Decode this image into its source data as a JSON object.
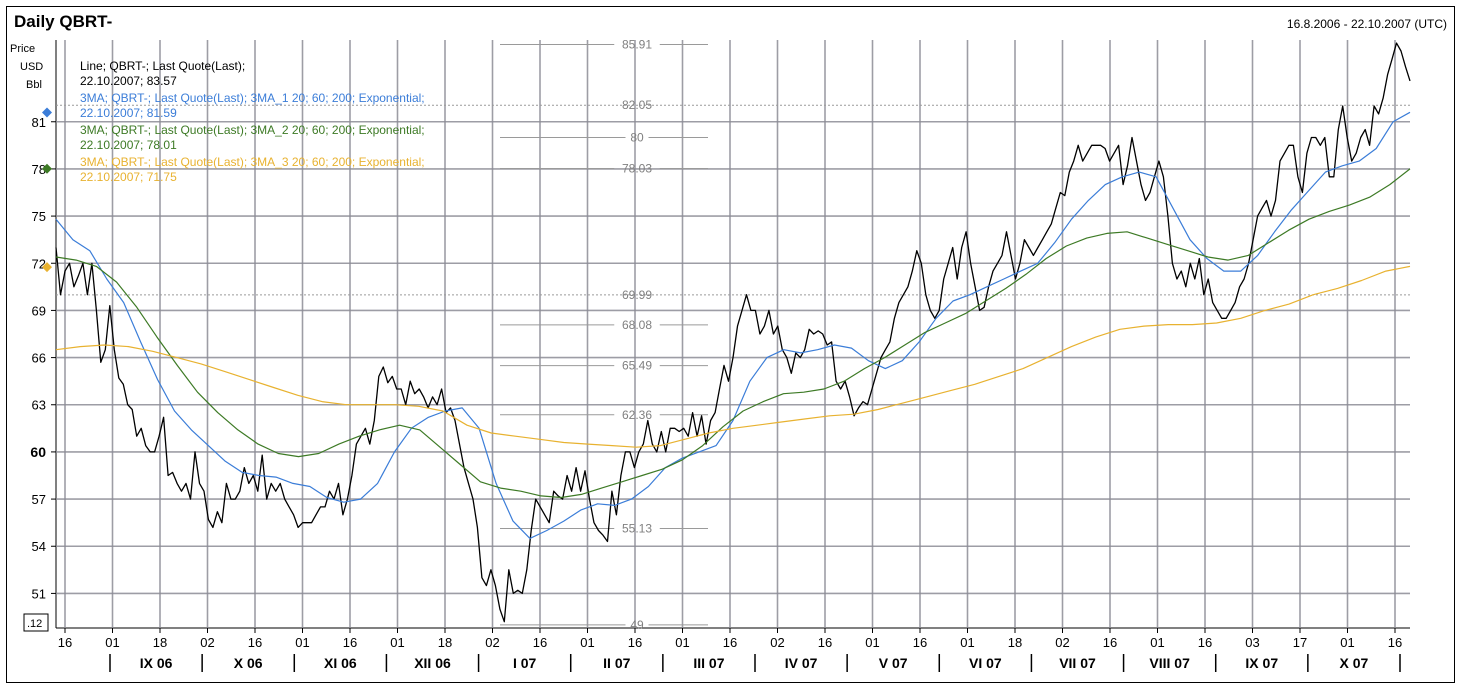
{
  "title": "Daily QBRT-",
  "date_range": "16.8.2006 - 22.10.2007 (UTC)",
  "y_unit_labels": [
    "Price",
    "USD",
    "Bbl"
  ],
  "corner_label": ".12",
  "colors": {
    "price": "#000000",
    "ma1": "#3b7dd8",
    "ma2": "#3d7a25",
    "ma3": "#e8b230",
    "grid": "#8c8c96",
    "grid_text": "#808080"
  },
  "legend": [
    {
      "line1": "Line; QBRT-; Last Quote(Last);",
      "line2": "22.10.2007; 83.57",
      "color": "#000000"
    },
    {
      "line1": "3MA; QBRT-; Last Quote(Last); 3MA_1 20; 60; 200; Exponential;",
      "line2": "22.10.2007; 81.59",
      "color": "#3b7dd8"
    },
    {
      "line1": "3MA; QBRT-; Last Quote(Last); 3MA_2 20; 60; 200; Exponential;",
      "line2": "22.10.2007; 78.01",
      "color": "#3d7a25"
    },
    {
      "line1": "3MA; QBRT-; Last Quote(Last); 3MA_3 20; 60; 200; Exponential;",
      "line2": "22.10.2007; 71.75",
      "color": "#e8b230"
    }
  ],
  "chart_data": {
    "type": "line",
    "y_ticks": [
      51,
      54,
      57,
      60,
      63,
      66,
      69,
      72,
      75,
      78,
      81
    ],
    "y_range": [
      48.8,
      86.2
    ],
    "marker_values": [
      {
        "value": 81.59,
        "color": "#3b7dd8"
      },
      {
        "value": 78.01,
        "color": "#3d7a25"
      },
      {
        "value": 71.75,
        "color": "#e8b230"
      }
    ],
    "horizontal_levels": [
      {
        "value": 85.91,
        "label": "85.91",
        "style": "solid"
      },
      {
        "value": 82.05,
        "label": "82.05",
        "style": "dotted"
      },
      {
        "value": 80,
        "label": "80",
        "style": "solid"
      },
      {
        "value": 78.03,
        "label": "78.03",
        "style": "solid"
      },
      {
        "value": 69.99,
        "label": "69.99",
        "style": "dotted"
      },
      {
        "value": 68.08,
        "label": "68.08",
        "style": "solid"
      },
      {
        "value": 65.49,
        "label": "65.49",
        "style": "solid"
      },
      {
        "value": 62.36,
        "label": "62.36",
        "style": "solid"
      },
      {
        "value": 55.13,
        "label": "55.13",
        "style": "solid"
      },
      {
        "value": 49,
        "label": "49",
        "style": "solid"
      }
    ],
    "x_day_ticks": [
      "16",
      "01",
      "18",
      "02",
      "16",
      "01",
      "16",
      "01",
      "18",
      "02",
      "16",
      "01",
      "16",
      "01",
      "16",
      "02",
      "16",
      "01",
      "16",
      "01",
      "18",
      "02",
      "16",
      "01",
      "16",
      "03",
      "17",
      "01",
      "16"
    ],
    "x_month_labels": [
      "IX 06",
      "X 06",
      "XI 06",
      "XII 06",
      "I 07",
      "II 07",
      "III 07",
      "IV 07",
      "V 07",
      "VI 07",
      "VII 07",
      "VIII 07",
      "IX 07",
      "X 07"
    ],
    "series": [
      {
        "name": "Line; QBRT-; Last Quote(Last)",
        "color": "#000000",
        "values": [
          73.0,
          70.0,
          71.5,
          72.0,
          70.5,
          71.2,
          72.0,
          70.0,
          72.0,
          69.0,
          65.7,
          66.5,
          69.3,
          66.5,
          64.7,
          64.3,
          63.0,
          62.7,
          61.0,
          61.5,
          60.4,
          60.0,
          60.0,
          61.0,
          62.2,
          58.5,
          58.7,
          58.0,
          57.5,
          58.0,
          57.0,
          60.0,
          58.0,
          57.5,
          55.7,
          55.2,
          56.2,
          55.5,
          58.0,
          57.0,
          57.0,
          57.5,
          59.0,
          58.0,
          58.5,
          57.5,
          59.8,
          57.0,
          58.0,
          57.5,
          58.0,
          57.0,
          56.5,
          56.0,
          55.2,
          55.5,
          55.5,
          55.5,
          56.0,
          56.5,
          56.5,
          57.5,
          57.0,
          58.0,
          56.0,
          57.0,
          58.5,
          60.5,
          61.0,
          61.5,
          60.5,
          62.0,
          64.8,
          65.4,
          64.4,
          64.8,
          64.0,
          64.0,
          63.0,
          64.5,
          63.7,
          64.0,
          63.5,
          62.8,
          63.5,
          63.0,
          64.0,
          62.5,
          62.8,
          62.0,
          60.5,
          59.0,
          58.0,
          57.0,
          55.2,
          52.0,
          51.5,
          52.5,
          51.5,
          50.0,
          49.2,
          52.5,
          51.0,
          51.2,
          51.0,
          52.5,
          55.0,
          57.0,
          56.5,
          56.0,
          55.5,
          57.5,
          57.2,
          57.0,
          58.5,
          57.5,
          59.0,
          57.5,
          58.8,
          57.0,
          55.5,
          55.0,
          54.7,
          54.3,
          57.5,
          56.0,
          58.5,
          60.0,
          60.0,
          59.0,
          60.0,
          60.5,
          62.0,
          60.5,
          60.0,
          61.3,
          60.0,
          61.5,
          61.5,
          61.3,
          61.5,
          61.0,
          62.5,
          61.0,
          62.3,
          60.5,
          62.0,
          62.5,
          64.0,
          65.5,
          64.5,
          66.0,
          68.0,
          69.0,
          70.0,
          69.0,
          69.0,
          67.5,
          68.0,
          69.0,
          67.5,
          68.0,
          66.5,
          66.0,
          65.0,
          66.3,
          66.0,
          66.5,
          67.8,
          67.5,
          67.7,
          67.5,
          66.8,
          67.0,
          64.5,
          64.0,
          64.5,
          63.5,
          62.3,
          62.8,
          63.2,
          63.0,
          64.0,
          65.0,
          66.0,
          66.5,
          67.0,
          68.5,
          69.5,
          70.0,
          70.5,
          71.5,
          72.8,
          72.0,
          70.0,
          69.0,
          68.5,
          69.0,
          71.0,
          72.0,
          73.0,
          71.0,
          73.0,
          74.0,
          72.0,
          70.5,
          69.0,
          69.2,
          70.5,
          71.5,
          72.0,
          72.5,
          74.0,
          72.5,
          71.0,
          72.0,
          73.5,
          73.0,
          72.5,
          73.0,
          73.5,
          74.0,
          74.5,
          75.5,
          76.5,
          76.3,
          77.8,
          78.5,
          79.5,
          78.5,
          79.0,
          79.5,
          79.5,
          79.5,
          79.3,
          78.5,
          79.0,
          79.5,
          77.0,
          78.2,
          80.0,
          78.5,
          77.0,
          76.0,
          76.5,
          77.5,
          78.5,
          77.5,
          75.0,
          72.0,
          71.0,
          71.5,
          70.5,
          72.0,
          71.0,
          72.3,
          70.0,
          71.0,
          69.5,
          69.0,
          68.5,
          68.5,
          69.0,
          69.5,
          70.5,
          71.0,
          72.0,
          73.5,
          75.0,
          75.5,
          76.0,
          75.0,
          76.0,
          78.5,
          79.0,
          79.5,
          79.5,
          77.5,
          76.5,
          79.0,
          80.0,
          80.0,
          79.5,
          80.0,
          77.5,
          77.5,
          80.5,
          82.0,
          80.0,
          78.5,
          79.0,
          80.0,
          80.5,
          79.5,
          82.0,
          81.5,
          82.5,
          84.0,
          85.0,
          86.0,
          85.5,
          84.5,
          83.6
        ]
      },
      {
        "name": "3MA_1 20",
        "color": "#3b7dd8",
        "values": [
          74.8,
          73.5,
          72.8,
          71.0,
          69.5,
          67.0,
          64.6,
          62.6,
          61.4,
          60.4,
          59.4,
          58.7,
          58.5,
          58.4,
          58.0,
          57.8,
          57.1,
          56.8,
          57.0,
          58.0,
          60.0,
          61.5,
          62.2,
          62.6,
          62.8,
          61.5,
          58.0,
          55.6,
          54.5,
          55.0,
          55.6,
          56.3,
          56.7,
          56.6,
          57.0,
          57.8,
          59.0,
          59.6,
          60.0,
          60.4,
          62.0,
          64.5,
          66.0,
          66.5,
          66.3,
          66.5,
          66.8,
          66.6,
          65.8,
          65.3,
          65.8,
          67.0,
          68.5,
          69.6,
          70.0,
          70.5,
          71.0,
          71.5,
          72.0,
          73.3,
          74.8,
          76.0,
          77.0,
          77.5,
          77.8,
          77.5,
          75.5,
          73.5,
          72.3,
          71.5,
          71.5,
          72.5,
          74.0,
          75.4,
          76.6,
          77.8,
          78.2,
          78.5,
          79.3,
          81.0,
          81.6
        ]
      },
      {
        "name": "3MA_2 60",
        "color": "#3d7a25",
        "values": [
          72.4,
          72.2,
          71.8,
          70.8,
          69.2,
          67.3,
          65.5,
          63.8,
          62.5,
          61.4,
          60.5,
          59.9,
          59.7,
          59.9,
          60.5,
          61.0,
          61.4,
          61.7,
          61.4,
          60.3,
          59.2,
          58.1,
          57.7,
          57.5,
          57.2,
          57.1,
          57.3,
          57.7,
          58.1,
          58.5,
          58.9,
          59.5,
          60.4,
          61.6,
          62.6,
          63.2,
          63.7,
          63.8,
          64.0,
          64.5,
          65.3,
          66.0,
          66.8,
          67.6,
          68.2,
          68.8,
          69.6,
          70.4,
          71.3,
          72.3,
          73.1,
          73.6,
          73.9,
          74.0,
          73.6,
          73.2,
          72.8,
          72.4,
          72.2,
          72.5,
          73.3,
          74.1,
          74.8,
          75.3,
          75.7,
          76.2,
          77.0,
          78.0
        ]
      },
      {
        "name": "3MA_3 200",
        "color": "#e8b230",
        "values": [
          66.5,
          66.7,
          66.8,
          66.7,
          66.4,
          66.0,
          65.6,
          65.1,
          64.6,
          64.1,
          63.6,
          63.2,
          63.0,
          63.0,
          63.0,
          62.9,
          62.6,
          61.7,
          61.2,
          61.0,
          60.8,
          60.6,
          60.5,
          60.4,
          60.3,
          60.4,
          60.8,
          61.2,
          61.5,
          61.7,
          61.9,
          62.1,
          62.3,
          62.4,
          62.7,
          63.1,
          63.5,
          63.9,
          64.3,
          64.8,
          65.3,
          66.0,
          66.7,
          67.3,
          67.8,
          68.0,
          68.1,
          68.1,
          68.2,
          68.5,
          69.0,
          69.4,
          70.0,
          70.4,
          70.9,
          71.5,
          71.8
        ]
      }
    ]
  }
}
